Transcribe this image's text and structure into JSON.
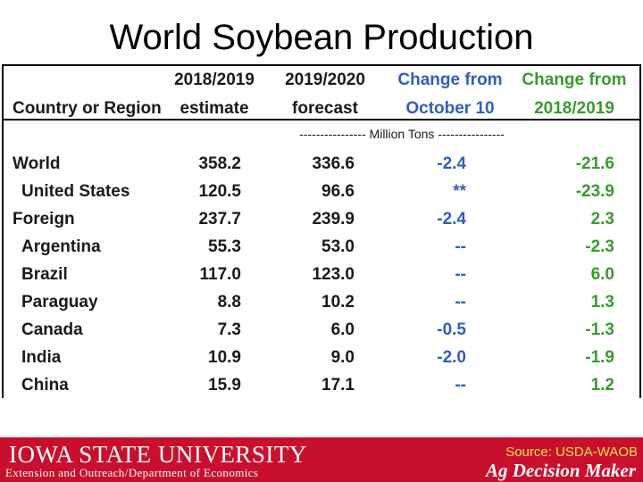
{
  "slide": {
    "title": "World Soybean Production"
  },
  "table": {
    "headers": {
      "country_line2": "Country or Region",
      "col2018_line1": "2018/2019",
      "col2018_line2": "estimate",
      "col2019_line1": "2019/2020",
      "col2019_line2": "forecast",
      "oct_line1": "Change from",
      "oct_line2": "October 10",
      "chg_line1": "Change from",
      "chg_line2": "2018/2019"
    },
    "units": "---------------- Million Tons ----------------",
    "rows": [
      {
        "name": "World",
        "v2018": "358.2",
        "v2019": "336.6",
        "oct": "-2.4",
        "chg": "-21.6"
      },
      {
        "name": "United States",
        "v2018": "120.5",
        "v2019": "96.6",
        "oct": "**",
        "chg": "-23.9"
      },
      {
        "name": "Foreign",
        "v2018": "237.7",
        "v2019": "239.9",
        "oct": "-2.4",
        "chg": "2.3"
      },
      {
        "name": "Argentina",
        "v2018": "55.3",
        "v2019": "53.0",
        "oct": "--",
        "chg": "-2.3"
      },
      {
        "name": "Brazil",
        "v2018": "117.0",
        "v2019": "123.0",
        "oct": "--",
        "chg": "6.0"
      },
      {
        "name": "Paraguay",
        "v2018": "8.8",
        "v2019": "10.2",
        "oct": "--",
        "chg": "1.3"
      },
      {
        "name": "Canada",
        "v2018": "7.3",
        "v2019": "6.0",
        "oct": "-0.5",
        "chg": "-1.3"
      },
      {
        "name": "India",
        "v2018": "10.9",
        "v2019": "9.0",
        "oct": "-2.0",
        "chg": "-1.9"
      },
      {
        "name": "China",
        "v2018": "15.9",
        "v2019": "17.1",
        "oct": "--",
        "chg": "1.2"
      }
    ]
  },
  "footer": {
    "university": "IOWA STATE UNIVERSITY",
    "department": "Extension and Outreach/Department of Economics",
    "source": "Source: USDA-WAOB",
    "brand": "Ag Decision Maker"
  },
  "colors": {
    "header_blue": "#2f5fbf",
    "header_green": "#3a9a2e",
    "footer_red": "#c8102e"
  }
}
